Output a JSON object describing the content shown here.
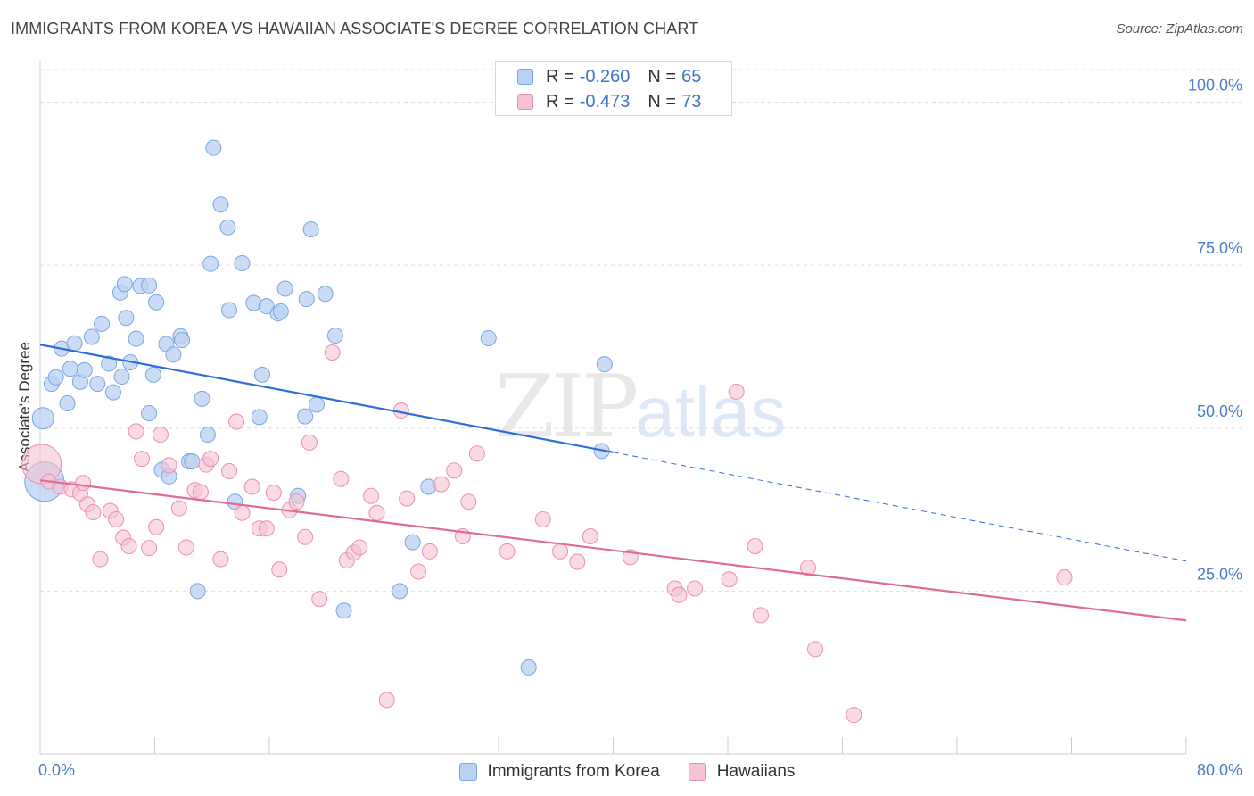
{
  "title": "IMMIGRANTS FROM KOREA VS HAWAIIAN ASSOCIATE'S DEGREE CORRELATION CHART",
  "source": "Source: ZipAtlas.com",
  "watermark": {
    "main": "ZIP",
    "sub": "atlas"
  },
  "legend_top": [
    {
      "r_key": "R =",
      "r_val": "-0.260",
      "n_key": "N =",
      "n_val": "65"
    },
    {
      "r_key": "R =",
      "r_val": "-0.473",
      "n_key": "N =",
      "n_val": "73"
    }
  ],
  "legend_bottom": [
    {
      "label": "Immigrants from Korea"
    },
    {
      "label": "Hawaiians"
    }
  ],
  "colors": {
    "blue_fill": "#b9d1f3",
    "blue_stroke": "#7aa6e0",
    "blue_line": "#2e6fd6",
    "pink_fill": "#f7c2d3",
    "pink_stroke": "#e890ae",
    "pink_line": "#e06b96",
    "tick_text": "#4a7cc7",
    "grid": "#dddddd"
  },
  "chart_data": {
    "type": "scatter",
    "title": "IMMIGRANTS FROM KOREA VS HAWAIIAN ASSOCIATE'S DEGREE CORRELATION CHART",
    "xlabel": "",
    "ylabel": "Associate's Degree",
    "xlim": [
      0,
      80
    ],
    "ylim": [
      0,
      105
    ],
    "x_tick_labels": [
      "0.0%",
      "80.0%"
    ],
    "y_ticks": [
      25,
      50,
      75,
      100
    ],
    "y_tick_labels": [
      "25.0%",
      "50.0%",
      "75.0%",
      "100.0%"
    ],
    "grid": "horizontal dashed",
    "series": [
      {
        "name": "Immigrants from Korea",
        "color": "#7aa6e0",
        "r": -0.26,
        "n": 65,
        "trend": {
          "x": [
            0,
            40
          ],
          "y": [
            62.8,
            46.3
          ],
          "dashed_extension_to_x": 80,
          "dashed_y_at_end": 29.6
        },
        "points": [
          [
            0.2,
            51.5,
            "big"
          ],
          [
            0.3,
            41.8,
            "huge"
          ],
          [
            0.8,
            56.8
          ],
          [
            1.1,
            57.8
          ],
          [
            1.5,
            62.2
          ],
          [
            1.9,
            53.8
          ],
          [
            2.1,
            59.1
          ],
          [
            2.4,
            63.0
          ],
          [
            2.8,
            57.1
          ],
          [
            3.1,
            58.9
          ],
          [
            3.6,
            64.0
          ],
          [
            4.0,
            56.8
          ],
          [
            4.3,
            66.0
          ],
          [
            4.8,
            59.9
          ],
          [
            5.1,
            55.5
          ],
          [
            5.6,
            70.8
          ],
          [
            5.7,
            57.9
          ],
          [
            5.9,
            72.1
          ],
          [
            6.0,
            66.9
          ],
          [
            6.3,
            60.1
          ],
          [
            6.7,
            63.7
          ],
          [
            7.0,
            71.8
          ],
          [
            7.6,
            71.9
          ],
          [
            7.6,
            52.3
          ],
          [
            7.9,
            58.2
          ],
          [
            8.1,
            69.3
          ],
          [
            8.5,
            43.6
          ],
          [
            8.8,
            62.9
          ],
          [
            9.0,
            42.6
          ],
          [
            9.3,
            61.3
          ],
          [
            9.8,
            64.1
          ],
          [
            9.9,
            63.5
          ],
          [
            10.4,
            44.9
          ],
          [
            10.6,
            44.9
          ],
          [
            11.0,
            25.0
          ],
          [
            11.3,
            54.5
          ],
          [
            11.7,
            49.0
          ],
          [
            11.9,
            75.2
          ],
          [
            12.1,
            93.0
          ],
          [
            12.6,
            84.3
          ],
          [
            13.1,
            80.8
          ],
          [
            13.2,
            68.1
          ],
          [
            13.6,
            38.7
          ],
          [
            14.1,
            75.3
          ],
          [
            14.9,
            69.2
          ],
          [
            15.3,
            51.7
          ],
          [
            15.5,
            58.2
          ],
          [
            15.8,
            68.7
          ],
          [
            16.6,
            67.6
          ],
          [
            16.8,
            67.9
          ],
          [
            17.1,
            71.4
          ],
          [
            18.0,
            39.6
          ],
          [
            18.5,
            51.8
          ],
          [
            18.6,
            69.8
          ],
          [
            18.9,
            80.5
          ],
          [
            19.3,
            53.6
          ],
          [
            19.9,
            70.6
          ],
          [
            20.6,
            64.2
          ],
          [
            21.2,
            22.0
          ],
          [
            25.1,
            25.0
          ],
          [
            26.0,
            32.5
          ],
          [
            27.1,
            41.0
          ],
          [
            31.3,
            63.8
          ],
          [
            34.1,
            13.3
          ],
          [
            39.2,
            46.5
          ],
          [
            39.4,
            59.8
          ]
        ]
      },
      {
        "name": "Hawaiians",
        "color": "#e890ae",
        "r": -0.473,
        "n": 73,
        "trend": {
          "x": [
            0,
            80
          ],
          "y": [
            42.0,
            20.5
          ]
        },
        "points": [
          [
            0.1,
            44.5,
            "huge"
          ],
          [
            0.6,
            41.8
          ],
          [
            1.4,
            41.0
          ],
          [
            2.2,
            40.6
          ],
          [
            2.8,
            40.0
          ],
          [
            3.0,
            41.6
          ],
          [
            3.3,
            38.3
          ],
          [
            3.7,
            37.1
          ],
          [
            4.2,
            29.9
          ],
          [
            4.9,
            37.3
          ],
          [
            5.3,
            36.0
          ],
          [
            5.8,
            33.2
          ],
          [
            6.2,
            31.9
          ],
          [
            6.7,
            49.5
          ],
          [
            7.1,
            45.3
          ],
          [
            7.6,
            31.6
          ],
          [
            8.1,
            34.8
          ],
          [
            8.4,
            49.0
          ],
          [
            9.0,
            44.3
          ],
          [
            9.7,
            37.7
          ],
          [
            10.2,
            31.7
          ],
          [
            10.8,
            40.5
          ],
          [
            11.2,
            40.2
          ],
          [
            11.6,
            44.4
          ],
          [
            11.9,
            45.3
          ],
          [
            12.6,
            29.9
          ],
          [
            13.2,
            43.4
          ],
          [
            13.7,
            51.0
          ],
          [
            14.1,
            37.0
          ],
          [
            14.8,
            41.0
          ],
          [
            15.3,
            34.6
          ],
          [
            15.8,
            34.6
          ],
          [
            16.3,
            40.1
          ],
          [
            16.7,
            28.3
          ],
          [
            17.4,
            37.4
          ],
          [
            17.9,
            38.7
          ],
          [
            18.5,
            33.3
          ],
          [
            18.8,
            47.8
          ],
          [
            19.5,
            23.8
          ],
          [
            20.4,
            61.6
          ],
          [
            21.0,
            42.2
          ],
          [
            21.4,
            29.7
          ],
          [
            21.9,
            30.9
          ],
          [
            22.3,
            31.7
          ],
          [
            23.1,
            39.6
          ],
          [
            23.5,
            37.0
          ],
          [
            24.2,
            8.3
          ],
          [
            25.2,
            52.7
          ],
          [
            25.6,
            39.2
          ],
          [
            26.4,
            28.0
          ],
          [
            27.2,
            31.1
          ],
          [
            28.0,
            41.4
          ],
          [
            28.9,
            43.5
          ],
          [
            29.5,
            33.4
          ],
          [
            29.9,
            38.7
          ],
          [
            30.5,
            46.1
          ],
          [
            32.6,
            31.1
          ],
          [
            35.1,
            36.0
          ],
          [
            36.3,
            31.1
          ],
          [
            37.5,
            29.5
          ],
          [
            38.4,
            33.4
          ],
          [
            41.2,
            30.2
          ],
          [
            44.3,
            25.4
          ],
          [
            44.6,
            24.4
          ],
          [
            45.7,
            25.4
          ],
          [
            48.1,
            26.8
          ],
          [
            48.6,
            55.6
          ],
          [
            49.9,
            31.9
          ],
          [
            50.3,
            21.3
          ],
          [
            53.6,
            28.6
          ],
          [
            54.1,
            16.1
          ],
          [
            56.8,
            6.0
          ],
          [
            71.5,
            27.1
          ]
        ]
      }
    ]
  }
}
